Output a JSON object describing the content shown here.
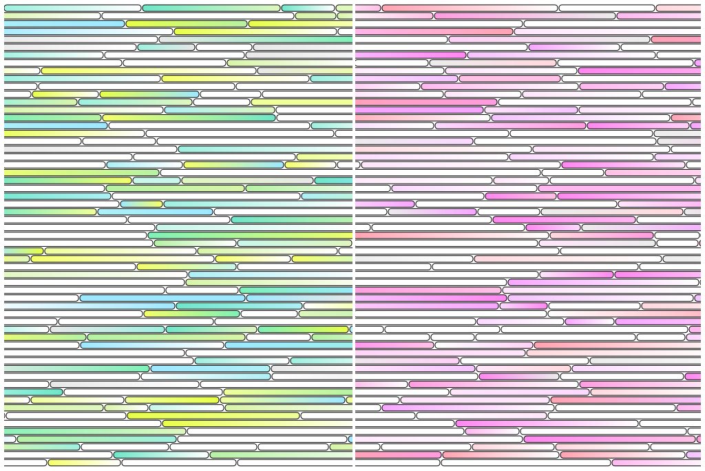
{
  "panels": [
    {
      "id": "left",
      "palette": [
        "#6fe6c8",
        "#9ff0e0",
        "#aef0f5",
        "#c9f7ea",
        "#d8f5a9",
        "#efff9c",
        "#f4ff6a",
        "#e7ff48",
        "#b6f2a4",
        "#7ff0b8",
        "#9ee8ff",
        "#ffffff",
        "#e8e8e8",
        "#dff7c0"
      ],
      "base_color": "#ffffff"
    },
    {
      "id": "right",
      "palette": [
        "#ff9ce0",
        "#ffb8f0",
        "#ffd2f7",
        "#ffe6fb",
        "#f7a6ff",
        "#ff87f0",
        "#ffc2e6",
        "#ffd9df",
        "#ffa3b3",
        "#f5c4ff",
        "#ffffff",
        "#ececec",
        "#fbd9ff"
      ],
      "base_color": "#ffffff"
    }
  ]
}
